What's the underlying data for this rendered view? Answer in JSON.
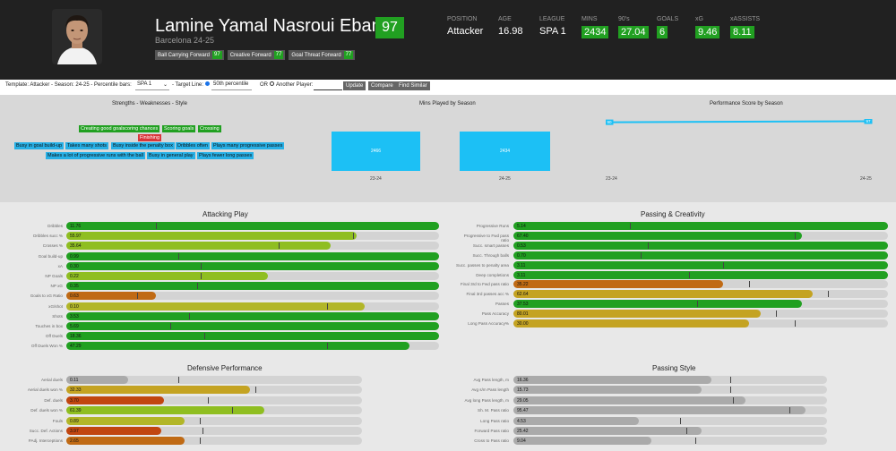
{
  "colors": {
    "green": "#21a021",
    "lightgreen": "#8fbe21",
    "yellowgreen": "#b2b628",
    "gold": "#c4a322",
    "orange": "#c06a14",
    "darkorange": "#c14610",
    "blue": "#27b0e6",
    "grey": "#aaaaaa"
  },
  "player": {
    "name": "Lamine Yamal Nasroui Ebana",
    "rating": "97",
    "club": "Barcelona 24-25",
    "roles": [
      {
        "label": "Ball Carrying Forward",
        "score": "97"
      },
      {
        "label": "Creative Forward",
        "score": "77"
      },
      {
        "label": "Goal Threat Forward",
        "score": "77"
      }
    ]
  },
  "stats": [
    {
      "label": "POSITION",
      "value": "Attacker",
      "boxed": false
    },
    {
      "label": "AGE",
      "value": "16.98",
      "boxed": false
    },
    {
      "label": "LEAGUE",
      "value": "SPA 1",
      "boxed": false
    },
    {
      "label": "MINS",
      "value": "2434",
      "boxed": true
    },
    {
      "label": "90's",
      "value": "27.04",
      "boxed": true
    },
    {
      "label": "GOALS",
      "value": "6",
      "boxed": true
    },
    {
      "label": "xG",
      "value": "9.46",
      "boxed": true
    },
    {
      "label": "xASSISTS",
      "value": "8.11",
      "boxed": true
    }
  ],
  "controls": {
    "template_label": "Template: Attacker - Season: 24-25 - Percentile bars:",
    "league_select": "SPA 1",
    "target_label": "- Target Line:",
    "percentile_select": "50th percentile",
    "or_label": "OR",
    "another_label": "Another Player:",
    "update": "Update",
    "compare": "Compare",
    "find_similar": "Find Similar"
  },
  "summary": {
    "sw_title": "Strengths - Weaknesses - Style",
    "mins_title": "Mins Played by Season",
    "perf_title": "Performance Score by Season",
    "chips": [
      {
        "text": "Creating good goalscoring chances",
        "kind": "g"
      },
      {
        "text": "Scoring goals",
        "kind": "g"
      },
      {
        "text": "Crossing",
        "kind": "g"
      },
      {
        "text": "Finishing",
        "kind": "r"
      },
      {
        "text": "Busy in goal build-up",
        "kind": "b"
      },
      {
        "text": "Takes many shots",
        "kind": "b"
      },
      {
        "text": "Busy inside the penalty box",
        "kind": "b"
      },
      {
        "text": "Dribbles often",
        "kind": "b"
      },
      {
        "text": "Plays many progressive passes",
        "kind": "b"
      },
      {
        "text": "Makes a lot of progressive runs with the ball",
        "kind": "b"
      },
      {
        "text": "Busy in general play",
        "kind": "b"
      },
      {
        "text": "Plays fewer long passes",
        "kind": "b"
      }
    ],
    "mins": [
      {
        "season": "23-24",
        "value": "2466"
      },
      {
        "season": "24-25",
        "value": "2434"
      }
    ],
    "perf": [
      {
        "season": "23-24",
        "value": 90,
        "label": "90"
      },
      {
        "season": "24-25",
        "value": 97,
        "label": "97"
      }
    ]
  },
  "panels": [
    {
      "title": "Attacking Play",
      "rows": [
        {
          "label": "Dribbles",
          "value": "11.76",
          "pct": 100,
          "ref": 24,
          "color": "green"
        },
        {
          "label": "Dribbles succ %",
          "value": "55.97",
          "pct": 78,
          "ref": 77,
          "color": "lightgreen"
        },
        {
          "label": "Crosses %",
          "value": "35.64",
          "pct": 71,
          "ref": 57,
          "color": "lightgreen"
        },
        {
          "label": "Goal build-up",
          "value": "0.99",
          "pct": 100,
          "ref": 30,
          "color": "green"
        },
        {
          "label": "xA",
          "value": "0.30",
          "pct": 100,
          "ref": 36,
          "color": "green"
        },
        {
          "label": "NP Goals",
          "value": "0.22",
          "pct": 54,
          "ref": 36,
          "color": "lightgreen"
        },
        {
          "label": "NP xG",
          "value": "0.35",
          "pct": 100,
          "ref": 35,
          "color": "green"
        },
        {
          "label": "Goals to xG Ratio",
          "value": "0.63",
          "pct": 24,
          "ref": 19,
          "color": "orange"
        },
        {
          "label": "xG/shot",
          "value": "0.10",
          "pct": 80,
          "ref": 70,
          "color": "yellowgreen"
        },
        {
          "label": "Shots",
          "value": "3.53",
          "pct": 100,
          "ref": 33,
          "color": "green"
        },
        {
          "label": "Touches in box",
          "value": "5.69",
          "pct": 100,
          "ref": 28,
          "color": "green"
        },
        {
          "label": "Off Duels",
          "value": "18.36",
          "pct": 100,
          "ref": 37,
          "color": "green"
        },
        {
          "label": "Off Duels Won %",
          "value": "47.29",
          "pct": 92,
          "ref": 70,
          "color": "green"
        }
      ]
    },
    {
      "title": "Passing & Creativity",
      "rows": [
        {
          "label": "Progressive Runs",
          "value": "5.14",
          "pct": 100,
          "ref": 31,
          "color": "green"
        },
        {
          "label": "Progressive to Fwd pass ratio",
          "value": "67.40",
          "pct": 77,
          "ref": 75,
          "color": "green"
        },
        {
          "label": "Succ. smart passes",
          "value": "0.53",
          "pct": 100,
          "ref": 36,
          "color": "green"
        },
        {
          "label": "Succ. Through balls",
          "value": "0.70",
          "pct": 100,
          "ref": 34,
          "color": "green"
        },
        {
          "label": "Succ. passes to penalty area",
          "value": "3.11",
          "pct": 100,
          "ref": 56,
          "color": "green"
        },
        {
          "label": "Deep completions",
          "value": "3.11",
          "pct": 100,
          "ref": 47,
          "color": "green"
        },
        {
          "label": "Final 3rd to Fwd pass ratio",
          "value": "35.22",
          "pct": 56,
          "ref": 63,
          "color": "orange"
        },
        {
          "label": "Final 3rd passes acc %",
          "value": "62.64",
          "pct": 80,
          "ref": 84,
          "color": "gold"
        },
        {
          "label": "Passes",
          "value": "37.53",
          "pct": 77,
          "ref": 49,
          "color": "green"
        },
        {
          "label": "Pass Accuracy",
          "value": "80.01",
          "pct": 66,
          "ref": 70,
          "color": "gold"
        },
        {
          "label": "Long Pass Accuracy%",
          "value": "30.00",
          "pct": 63,
          "ref": 75,
          "color": "gold"
        }
      ]
    },
    {
      "title": "Defensive Performance",
      "rows": [
        {
          "label": "Aerial duels",
          "value": "0.11",
          "pct": 21,
          "ref": 38,
          "color": "grey"
        },
        {
          "label": "Aerial duels won %",
          "value": "32.33",
          "pct": 62,
          "ref": 64,
          "color": "gold"
        },
        {
          "label": "Def. duels",
          "value": "3.70",
          "pct": 33,
          "ref": 48,
          "color": "darkorange"
        },
        {
          "label": "Def. duels won %",
          "value": "61.39",
          "pct": 67,
          "ref": 56,
          "color": "lightgreen"
        },
        {
          "label": "Fouls",
          "value": "0.89",
          "pct": 40,
          "ref": 45,
          "color": "yellowgreen"
        },
        {
          "label": "Succ. Def. Actions",
          "value": "3.97",
          "pct": 32,
          "ref": 46,
          "color": "darkorange"
        },
        {
          "label": "PAdj. Interceptions",
          "value": "2.65",
          "pct": 40,
          "ref": 45,
          "color": "orange"
        }
      ]
    },
    {
      "title": "Passing Style",
      "rows": [
        {
          "label": "Avg Pass length, m",
          "value": "16.36",
          "pct": 63,
          "ref": 69,
          "color": "grey"
        },
        {
          "label": "Avg s/m Pass length",
          "value": "15.73",
          "pct": 60,
          "ref": 69,
          "color": "grey"
        },
        {
          "label": "Avg long Pass length, m",
          "value": "29.05",
          "pct": 74,
          "ref": 70,
          "color": "grey"
        },
        {
          "label": "Sh. M. Pass ratio",
          "value": "95.47",
          "pct": 93,
          "ref": 88,
          "color": "grey"
        },
        {
          "label": "Long Pass ratio",
          "value": "4.53",
          "pct": 40,
          "ref": 53,
          "color": "grey"
        },
        {
          "label": "Forward Pass ratio",
          "value": "25.42",
          "pct": 60,
          "ref": 55,
          "color": "grey"
        },
        {
          "label": "Cross to Pass ratio",
          "value": "9.04",
          "pct": 44,
          "ref": 58,
          "color": "grey"
        }
      ]
    }
  ]
}
